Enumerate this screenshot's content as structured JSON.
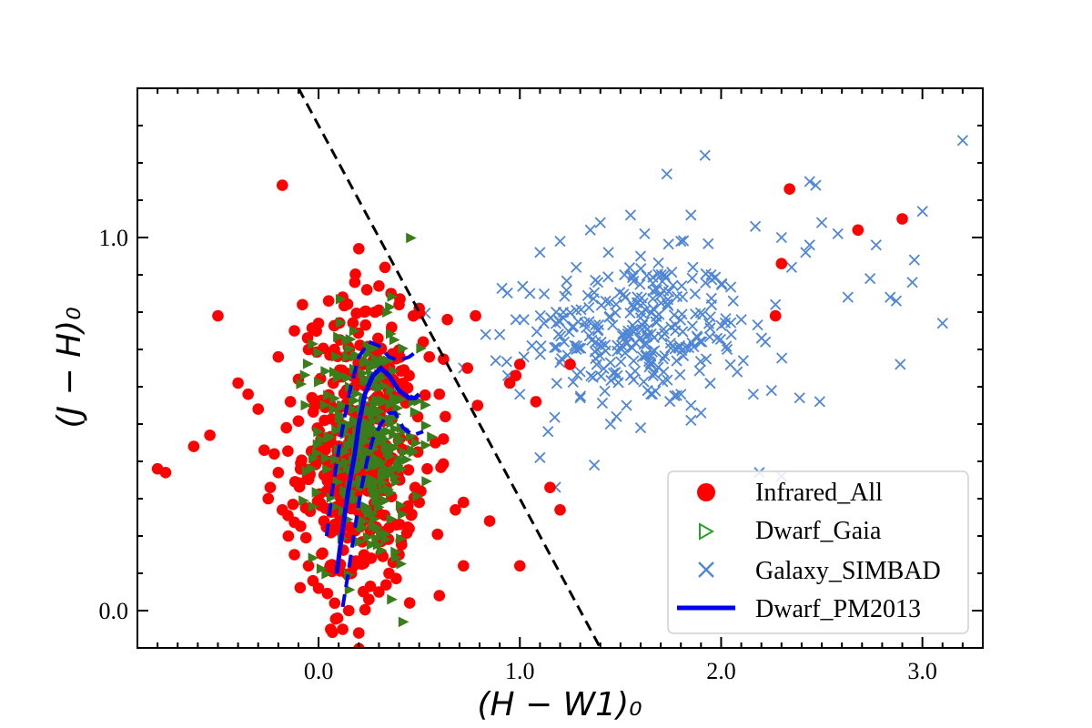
{
  "chart_data": {
    "type": "scatter",
    "title": "",
    "xlabel": "(H − W1)₀",
    "ylabel": "(J − H)₀",
    "xlim": [
      -0.9,
      3.3
    ],
    "ylim": [
      -0.1,
      1.4
    ],
    "xticks": [
      {
        "value": 0.0,
        "label": "0.0"
      },
      {
        "value": 1.0,
        "label": "1.0"
      },
      {
        "value": 2.0,
        "label": "2.0"
      },
      {
        "value": 3.0,
        "label": "3.0"
      }
    ],
    "yticks": [
      {
        "value": 0.0,
        "label": "0.0"
      },
      {
        "value": 1.0,
        "label": "1.0"
      }
    ],
    "legend_position": "bottom-right",
    "legend": [
      {
        "name": "Infrared_All",
        "marker": "circle",
        "color": "#ff0000"
      },
      {
        "name": "Dwarf_Gaia",
        "marker": "triangle-right",
        "color": "#2ca02c"
      },
      {
        "name": "Galaxy_SIMBAD",
        "marker": "x",
        "color": "#4f86d6"
      },
      {
        "name": "Dwarf_PM2013",
        "marker": "line",
        "color": "#0000ee"
      }
    ],
    "series": [
      {
        "name": "Galaxy_SIMBAD",
        "color": "#4f86d6",
        "cluster": {
          "count": 260,
          "center": [
            1.58,
            0.75
          ],
          "spread": [
            0.26,
            0.1
          ]
        },
        "points": [
          [
            3.2,
            1.26
          ],
          [
            1.73,
            1.17
          ],
          [
            1.92,
            1.22
          ],
          [
            2.44,
            1.15
          ],
          [
            2.47,
            1.14
          ],
          [
            1.4,
            1.04
          ],
          [
            1.55,
            1.06
          ],
          [
            1.85,
            1.06
          ],
          [
            2.17,
            1.03
          ],
          [
            2.5,
            1.04
          ],
          [
            2.77,
            0.98
          ],
          [
            3.0,
            1.07
          ],
          [
            2.42,
            0.96
          ],
          [
            2.58,
            1.01
          ],
          [
            1.2,
            0.99
          ],
          [
            1.1,
            0.96
          ],
          [
            1.28,
            0.92
          ],
          [
            1.05,
            0.85
          ],
          [
            0.98,
            0.78
          ],
          [
            0.9,
            0.74
          ],
          [
            0.83,
            0.74
          ],
          [
            0.72,
            0.65
          ],
          [
            0.88,
            0.67
          ],
          [
            0.94,
            0.63
          ],
          [
            1.0,
            0.58
          ],
          [
            1.3,
            0.57
          ],
          [
            1.45,
            0.5
          ],
          [
            1.6,
            0.49
          ],
          [
            1.85,
            0.51
          ],
          [
            1.9,
            0.53
          ],
          [
            2.08,
            0.64
          ],
          [
            2.11,
            0.67
          ],
          [
            2.22,
            0.72
          ],
          [
            2.27,
            0.82
          ],
          [
            2.63,
            0.84
          ],
          [
            2.74,
            0.89
          ],
          [
            2.84,
            0.84
          ],
          [
            2.96,
            0.94
          ],
          [
            2.95,
            0.88
          ],
          [
            2.87,
            0.83
          ],
          [
            2.89,
            0.66
          ],
          [
            2.49,
            0.56
          ],
          [
            2.39,
            0.57
          ],
          [
            2.16,
            0.58
          ],
          [
            2.25,
            0.59
          ],
          [
            1.53,
            0.55
          ],
          [
            1.48,
            0.52
          ],
          [
            1.1,
            0.41
          ],
          [
            1.14,
            0.48
          ],
          [
            1.3,
            0.64
          ],
          [
            1.37,
            0.39
          ],
          [
            2.3,
            0.36
          ],
          [
            2.19,
            0.37
          ],
          [
            1.85,
            0.55
          ],
          [
            1.65,
            0.66
          ],
          [
            1.55,
            0.63
          ],
          [
            1.8,
            0.58
          ],
          [
            1.72,
            0.9
          ],
          [
            2.06,
            0.83
          ],
          [
            1.95,
            0.9
          ],
          [
            1.86,
            0.92
          ],
          [
            1.44,
            0.96
          ],
          [
            1.52,
            0.9
          ],
          [
            1.6,
            0.95
          ],
          [
            1.68,
            0.86
          ],
          [
            2.1,
            0.78
          ],
          [
            2.05,
            0.74
          ],
          [
            1.98,
            0.73
          ],
          [
            2.03,
            0.7
          ],
          [
            1.26,
            0.76
          ],
          [
            1.22,
            0.72
          ],
          [
            1.18,
            0.8
          ],
          [
            1.12,
            0.77
          ],
          [
            1.06,
            0.71
          ],
          [
            1.02,
            0.68
          ],
          [
            3.1,
            0.77
          ],
          [
            2.35,
            0.92
          ],
          [
            2.44,
            0.98
          ],
          [
            2.3,
            1.0
          ],
          [
            1.8,
            0.99
          ],
          [
            1.62,
            1.01
          ],
          [
            1.35,
            1.02
          ]
        ]
      },
      {
        "name": "Infrared_All",
        "color": "#ff0000",
        "cluster": {
          "count": 380,
          "center": [
            0.2,
            0.42
          ],
          "spread": [
            0.14,
            0.19
          ]
        },
        "points": [
          [
            -0.8,
            0.38
          ],
          [
            -0.76,
            0.37
          ],
          [
            -0.62,
            0.44
          ],
          [
            -0.54,
            0.47
          ],
          [
            -0.5,
            0.79
          ],
          [
            -0.4,
            0.61
          ],
          [
            -0.35,
            0.58
          ],
          [
            -0.3,
            0.54
          ],
          [
            -0.27,
            0.43
          ],
          [
            -0.25,
            0.3
          ],
          [
            -0.24,
            0.33
          ],
          [
            -0.2,
            0.68
          ],
          [
            -0.18,
            1.14
          ],
          [
            -0.12,
            0.75
          ],
          [
            -0.08,
            0.82
          ],
          [
            0.2,
            0.97
          ],
          [
            0.33,
            0.92
          ],
          [
            0.18,
            0.88
          ],
          [
            0.5,
            0.81
          ],
          [
            0.64,
            0.78
          ],
          [
            0.78,
            0.79
          ],
          [
            0.74,
            0.65
          ],
          [
            0.79,
            0.55
          ],
          [
            0.68,
            0.27
          ],
          [
            0.72,
            0.29
          ],
          [
            0.85,
            0.24
          ],
          [
            0.95,
            0.61
          ],
          [
            1.0,
            0.66
          ],
          [
            0.98,
            0.63
          ],
          [
            1.08,
            0.56
          ],
          [
            1.15,
            0.33
          ],
          [
            1.2,
            0.27
          ],
          [
            1.25,
            0.66
          ],
          [
            1.0,
            0.12
          ],
          [
            0.72,
            0.12
          ],
          [
            0.6,
            0.04
          ],
          [
            0.2,
            -0.06
          ],
          [
            0.12,
            -0.05
          ],
          [
            0.06,
            -0.05
          ],
          [
            2.27,
            0.79
          ],
          [
            2.3,
            0.93
          ],
          [
            2.34,
            1.13
          ],
          [
            2.68,
            1.02
          ],
          [
            2.9,
            1.05
          ],
          [
            0.3,
            0.87
          ],
          [
            0.4,
            0.82
          ],
          [
            0.52,
            0.72
          ],
          [
            0.55,
            0.68
          ],
          [
            0.45,
            0.63
          ],
          [
            0.6,
            0.58
          ],
          [
            0.63,
            0.52
          ],
          [
            0.58,
            0.45
          ],
          [
            0.54,
            0.38
          ],
          [
            0.48,
            0.33
          ],
          [
            0.62,
            0.46
          ],
          [
            0.5,
            0.29
          ],
          [
            0.45,
            0.22
          ],
          [
            0.4,
            0.15
          ],
          [
            0.35,
            0.1
          ],
          [
            0.3,
            0.05
          ],
          [
            0.25,
            0.03
          ],
          [
            0.15,
            0.0
          ],
          [
            0.08,
            0.02
          ],
          [
            0.0,
            0.06
          ],
          [
            -0.05,
            0.12
          ],
          [
            -0.12,
            0.15
          ],
          [
            -0.15,
            0.2
          ],
          [
            -0.18,
            0.27
          ],
          [
            -0.2,
            0.37
          ],
          [
            -0.22,
            0.42
          ],
          [
            -0.16,
            0.49
          ],
          [
            -0.14,
            0.56
          ],
          [
            -0.1,
            0.62
          ],
          [
            -0.05,
            0.7
          ],
          [
            0.0,
            0.77
          ],
          [
            0.05,
            0.83
          ],
          [
            0.12,
            0.84
          ],
          [
            0.24,
            0.86
          ],
          [
            0.36,
            0.85
          ],
          [
            0.28,
            0.8
          ]
        ]
      },
      {
        "name": "Dwarf_Gaia",
        "color": "#3a7d1a",
        "cluster": {
          "count": 300,
          "center": [
            0.24,
            0.45
          ],
          "spread": [
            0.13,
            0.16
          ]
        }
      }
    ],
    "lines": [
      {
        "name": "Dwarf_PM2013",
        "style": "solid",
        "color": "#0000ee",
        "points": [
          [
            0.09,
            0.1
          ],
          [
            0.12,
            0.22
          ],
          [
            0.15,
            0.33
          ],
          [
            0.18,
            0.42
          ],
          [
            0.2,
            0.5
          ],
          [
            0.23,
            0.58
          ],
          [
            0.27,
            0.63
          ],
          [
            0.31,
            0.65
          ],
          [
            0.35,
            0.63
          ],
          [
            0.4,
            0.59
          ],
          [
            0.45,
            0.57
          ],
          [
            0.48,
            0.57
          ],
          [
            0.5,
            0.58
          ]
        ]
      },
      {
        "name": "Dwarf_PM2013 upper",
        "style": "dashed",
        "color": "#0000ee",
        "points": [
          [
            0.04,
            0.2
          ],
          [
            0.07,
            0.33
          ],
          [
            0.1,
            0.43
          ],
          [
            0.13,
            0.52
          ],
          [
            0.16,
            0.6
          ],
          [
            0.2,
            0.68
          ],
          [
            0.25,
            0.72
          ],
          [
            0.3,
            0.71
          ],
          [
            0.35,
            0.68
          ],
          [
            0.4,
            0.67
          ],
          [
            0.45,
            0.68
          ],
          [
            0.5,
            0.7
          ]
        ]
      },
      {
        "name": "Dwarf_PM2013 lower",
        "style": "dashed",
        "color": "#0000ee",
        "points": [
          [
            0.12,
            0.01
          ],
          [
            0.15,
            0.11
          ],
          [
            0.18,
            0.22
          ],
          [
            0.21,
            0.32
          ],
          [
            0.24,
            0.4
          ],
          [
            0.27,
            0.46
          ],
          [
            0.31,
            0.5
          ],
          [
            0.35,
            0.53
          ],
          [
            0.38,
            0.53
          ],
          [
            0.42,
            0.49
          ],
          [
            0.47,
            0.47
          ],
          [
            0.52,
            0.48
          ]
        ]
      },
      {
        "name": "separation line",
        "style": "dashed",
        "color": "#000000",
        "points": [
          [
            -0.1,
            1.4
          ],
          [
            1.4,
            -0.1
          ]
        ]
      }
    ]
  }
}
